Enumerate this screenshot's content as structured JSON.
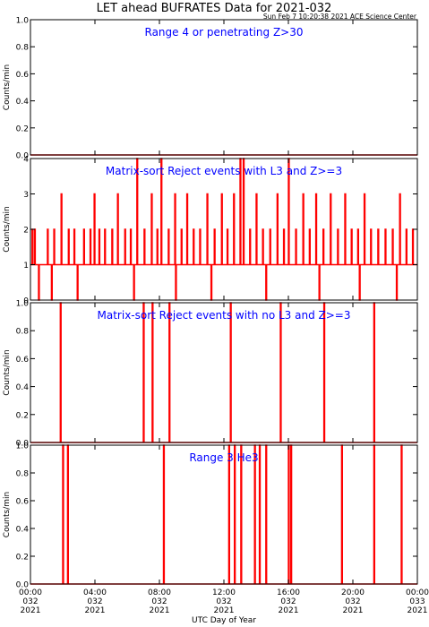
{
  "header": {
    "title": "LET ahead BUFRATES Data for 2021-032",
    "timestamp": "Sun Feb  7 10:20:38 2021 ACE Science Center"
  },
  "colors": {
    "trace": "#ff0000",
    "annotation": "#0000ff",
    "axis": "#000000",
    "background": "#ffffff"
  },
  "x_axis": {
    "label": "UTC Day of Year",
    "range_hours": [
      0,
      24
    ],
    "ticks": [
      {
        "hour": 0,
        "time": "00:00",
        "day": "032",
        "year": "2021"
      },
      {
        "hour": 4,
        "time": "04:00",
        "day": "032",
        "year": "2021"
      },
      {
        "hour": 8,
        "time": "08:00",
        "day": "032",
        "year": "2021"
      },
      {
        "hour": 12,
        "time": "12:00",
        "day": "032",
        "year": "2021"
      },
      {
        "hour": 16,
        "time": "16:00",
        "day": "032",
        "year": "2021"
      },
      {
        "hour": 20,
        "time": "20:00",
        "day": "032",
        "year": "2021"
      },
      {
        "hour": 24,
        "time": "00:00",
        "day": "033",
        "year": "2021"
      }
    ]
  },
  "chart_data": [
    {
      "type": "line",
      "annotation": "Range 4 or   penetrating Z>30",
      "ylabel": "Counts/min",
      "ylim": [
        0,
        1.0
      ],
      "yticks": [
        "0.0",
        "0.2",
        "0.4",
        "0.6",
        "0.8",
        "1.0"
      ],
      "ytick_values": [
        0,
        0.2,
        0.4,
        0.6,
        0.8,
        1.0
      ],
      "baseline": 0,
      "spikes": []
    },
    {
      "type": "line",
      "annotation": "Matrix-sort Reject events with L3 and Z>=3",
      "ylabel": "Counts/min",
      "ylim": [
        0,
        4
      ],
      "yticks": [
        "0",
        "1",
        "2",
        "3",
        "4"
      ],
      "ytick_values": [
        0,
        1,
        2,
        3,
        4
      ],
      "baseline": 1,
      "spikes": [
        {
          "x": 0.1,
          "y": 2
        },
        {
          "x": 0.25,
          "y": 2
        },
        {
          "x": 1.05,
          "y": 2
        },
        {
          "x": 1.45,
          "y": 2
        },
        {
          "x": 1.9,
          "y": 3
        },
        {
          "x": 2.35,
          "y": 2
        },
        {
          "x": 2.7,
          "y": 2
        },
        {
          "x": 3.3,
          "y": 2
        },
        {
          "x": 3.7,
          "y": 2
        },
        {
          "x": 3.95,
          "y": 3
        },
        {
          "x": 4.25,
          "y": 2
        },
        {
          "x": 4.6,
          "y": 2
        },
        {
          "x": 5.05,
          "y": 2
        },
        {
          "x": 5.4,
          "y": 3
        },
        {
          "x": 5.85,
          "y": 2
        },
        {
          "x": 6.2,
          "y": 2
        },
        {
          "x": 6.6,
          "y": 4
        },
        {
          "x": 7.05,
          "y": 2
        },
        {
          "x": 7.5,
          "y": 3
        },
        {
          "x": 7.85,
          "y": 2
        },
        {
          "x": 8.1,
          "y": 4
        },
        {
          "x": 8.55,
          "y": 2
        },
        {
          "x": 8.95,
          "y": 3
        },
        {
          "x": 9.35,
          "y": 2
        },
        {
          "x": 9.7,
          "y": 3
        },
        {
          "x": 10.1,
          "y": 2
        },
        {
          "x": 10.5,
          "y": 2
        },
        {
          "x": 10.95,
          "y": 3
        },
        {
          "x": 11.4,
          "y": 2
        },
        {
          "x": 11.85,
          "y": 3
        },
        {
          "x": 12.2,
          "y": 2
        },
        {
          "x": 12.6,
          "y": 3
        },
        {
          "x": 13.0,
          "y": 4
        },
        {
          "x": 13.2,
          "y": 4
        },
        {
          "x": 13.6,
          "y": 2
        },
        {
          "x": 14.0,
          "y": 3
        },
        {
          "x": 14.4,
          "y": 2
        },
        {
          "x": 14.85,
          "y": 2
        },
        {
          "x": 15.3,
          "y": 3
        },
        {
          "x": 15.7,
          "y": 2
        },
        {
          "x": 16.0,
          "y": 4
        },
        {
          "x": 16.45,
          "y": 2
        },
        {
          "x": 16.9,
          "y": 3
        },
        {
          "x": 17.3,
          "y": 2
        },
        {
          "x": 17.7,
          "y": 3
        },
        {
          "x": 18.15,
          "y": 2
        },
        {
          "x": 18.6,
          "y": 3
        },
        {
          "x": 19.05,
          "y": 2
        },
        {
          "x": 19.5,
          "y": 3
        },
        {
          "x": 19.9,
          "y": 2
        },
        {
          "x": 20.3,
          "y": 2
        },
        {
          "x": 20.7,
          "y": 3
        },
        {
          "x": 21.1,
          "y": 2
        },
        {
          "x": 21.55,
          "y": 2
        },
        {
          "x": 22.0,
          "y": 2
        },
        {
          "x": 22.45,
          "y": 2
        },
        {
          "x": 22.9,
          "y": 3
        },
        {
          "x": 23.3,
          "y": 2
        },
        {
          "x": 23.7,
          "y": 2
        }
      ],
      "dips": [
        0.5,
        1.3,
        2.9,
        6.4,
        9.0,
        11.2,
        14.6,
        17.9,
        20.4,
        22.7
      ]
    },
    {
      "type": "line",
      "annotation": "Matrix-sort Reject events with no L3 and Z>=3",
      "ylabel": "Counts/min",
      "ylim": [
        0,
        1.0
      ],
      "yticks": [
        "0.0",
        "0.2",
        "0.4",
        "0.6",
        "0.8",
        "1.0"
      ],
      "ytick_values": [
        0,
        0.2,
        0.4,
        0.6,
        0.8,
        1.0
      ],
      "baseline": 0,
      "spikes": [
        {
          "x": 1.85,
          "y": 1
        },
        {
          "x": 7.0,
          "y": 1
        },
        {
          "x": 7.55,
          "y": 1
        },
        {
          "x": 8.6,
          "y": 1
        },
        {
          "x": 12.4,
          "y": 1
        },
        {
          "x": 15.5,
          "y": 1
        },
        {
          "x": 18.2,
          "y": 1
        },
        {
          "x": 21.3,
          "y": 1
        }
      ]
    },
    {
      "type": "line",
      "annotation": "Range 3 He3",
      "ylabel": "Counts/min",
      "ylim": [
        0,
        1.0
      ],
      "yticks": [
        "0.0",
        "0.2",
        "0.4",
        "0.6",
        "0.8",
        "1.0"
      ],
      "ytick_values": [
        0,
        0.2,
        0.4,
        0.6,
        0.8,
        1.0
      ],
      "baseline": 0,
      "spikes": [
        {
          "x": 2.0,
          "y": 1
        },
        {
          "x": 2.3,
          "y": 1
        },
        {
          "x": 8.25,
          "y": 1
        },
        {
          "x": 12.3,
          "y": 1
        },
        {
          "x": 12.65,
          "y": 1
        },
        {
          "x": 13.05,
          "y": 1
        },
        {
          "x": 13.9,
          "y": 1
        },
        {
          "x": 14.2,
          "y": 1
        },
        {
          "x": 14.6,
          "y": 1
        },
        {
          "x": 16.0,
          "y": 1
        },
        {
          "x": 16.15,
          "y": 1
        },
        {
          "x": 19.3,
          "y": 1
        },
        {
          "x": 21.3,
          "y": 1
        },
        {
          "x": 23.0,
          "y": 1
        }
      ]
    }
  ]
}
